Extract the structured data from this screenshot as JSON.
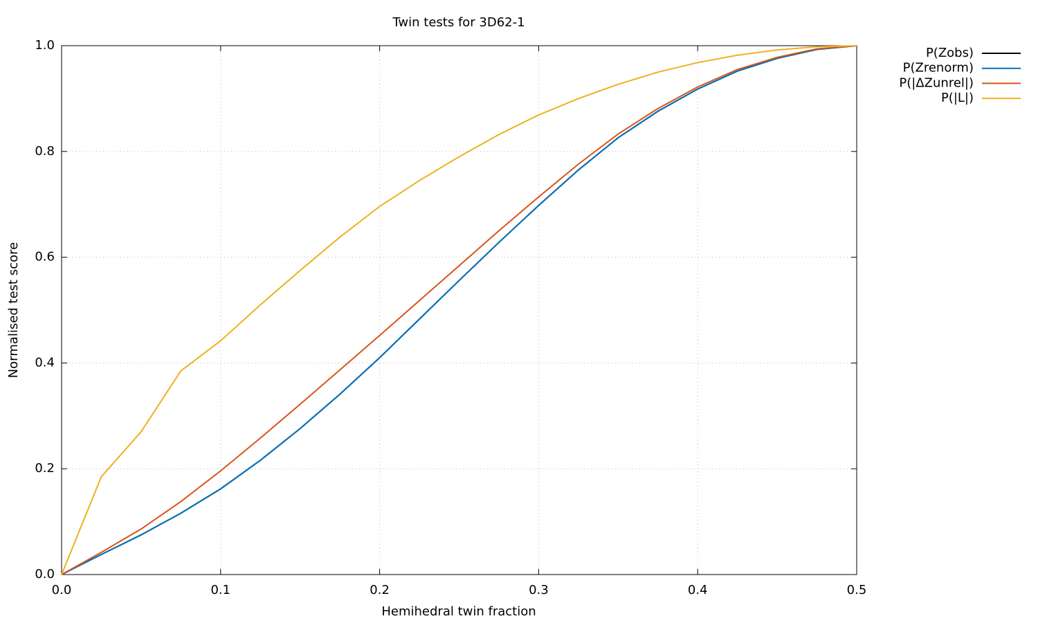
{
  "chart_data": {
    "type": "line",
    "title": "Twin tests for 3D62-1",
    "x_label": "Hemihedral twin fraction",
    "y_label": "Normalised test score",
    "x": [
      0,
      0.025,
      0.05,
      0.075,
      0.1,
      0.125,
      0.15,
      0.175,
      0.2,
      0.225,
      0.25,
      0.275,
      0.3,
      0.325,
      0.35,
      0.375,
      0.4,
      0.425,
      0.45,
      0.475,
      0.5
    ],
    "series": [
      {
        "name": "P(Zobs)",
        "color": "#000000",
        "values": [
          0,
          0.038,
          0.075,
          0.116,
          0.162,
          0.216,
          0.276,
          0.341,
          0.41,
          0.483,
          0.556,
          0.628,
          0.698,
          0.765,
          0.826,
          0.876,
          0.918,
          0.952,
          0.976,
          0.993,
          1
        ]
      },
      {
        "name": "P(Zrenorm)",
        "color": "#0072bd",
        "values": [
          0,
          0.038,
          0.075,
          0.116,
          0.162,
          0.216,
          0.276,
          0.341,
          0.41,
          0.483,
          0.556,
          0.628,
          0.698,
          0.765,
          0.826,
          0.876,
          0.918,
          0.952,
          0.976,
          0.993,
          1
        ]
      },
      {
        "name": "P(|ΔZunrel|)",
        "color": "#d95319",
        "values": [
          0,
          0.042,
          0.086,
          0.138,
          0.196,
          0.258,
          0.322,
          0.387,
          0.452,
          0.518,
          0.584,
          0.65,
          0.714,
          0.776,
          0.833,
          0.881,
          0.922,
          0.955,
          0.978,
          0.994,
          1
        ]
      },
      {
        "name": "P(|L|)",
        "color": "#edb120",
        "values": [
          0,
          0.185,
          0.27,
          0.385,
          0.442,
          0.51,
          0.575,
          0.638,
          0.696,
          0.745,
          0.79,
          0.832,
          0.869,
          0.9,
          0.927,
          0.95,
          0.968,
          0.982,
          0.992,
          0.998,
          1
        ]
      }
    ],
    "xlim": [
      0,
      0.5
    ],
    "xticks": [
      {
        "value": 0,
        "label": "0.0"
      },
      0.1,
      0.2,
      0.3,
      0.4,
      0.5
    ],
    "ylim": [
      0,
      1
    ],
    "yticks": [
      {
        "value": 0,
        "label": "0.0"
      },
      0.2,
      0.4,
      0.6,
      0.8,
      {
        "value": 1,
        "label": "1.0"
      }
    ],
    "grid": true,
    "legend": "outside-top-right"
  }
}
